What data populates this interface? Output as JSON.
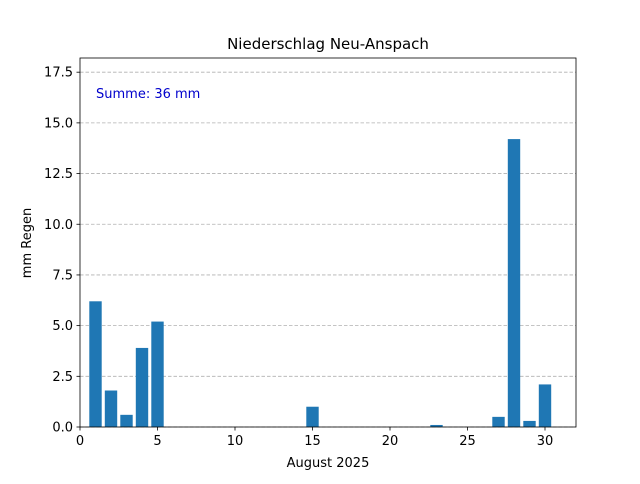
{
  "chart_data": {
    "type": "bar",
    "title": "Niederschlag Neu-Anspach",
    "xlabel": "August 2025",
    "ylabel": "mm Regen",
    "annotation": "Summe: 36 mm",
    "annotation_color": "#0000cc",
    "bar_color": "#1f77b4",
    "grid": "y-axis, dashed",
    "xlim": [
      0,
      32
    ],
    "ylim": [
      0,
      18.2
    ],
    "xticks": [
      0,
      5,
      10,
      15,
      20,
      25,
      30
    ],
    "yticks": [
      0.0,
      2.5,
      5.0,
      7.5,
      10.0,
      12.5,
      15.0,
      17.5
    ],
    "ytick_labels": [
      "0.0",
      "2.5",
      "5.0",
      "7.5",
      "10.0",
      "12.5",
      "15.0",
      "17.5"
    ],
    "x": [
      1,
      2,
      3,
      4,
      5,
      15,
      23,
      27,
      28,
      29,
      30
    ],
    "values": [
      6.2,
      1.8,
      0.6,
      3.9,
      5.2,
      1.0,
      0.1,
      0.5,
      14.2,
      0.3,
      2.1
    ]
  }
}
